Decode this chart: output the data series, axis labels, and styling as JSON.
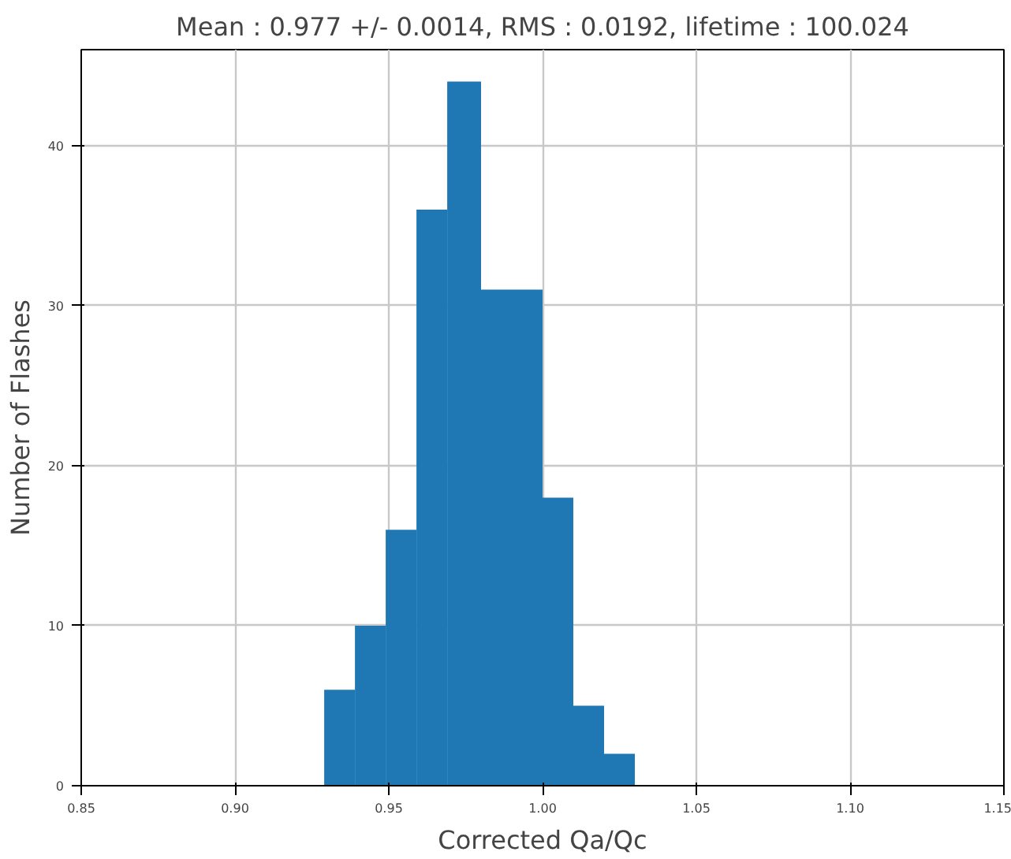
{
  "chart_data": {
    "type": "histogram",
    "title": "Mean : 0.977 +/- 0.0014, RMS : 0.0192, lifetime : 100.024",
    "xlabel": "Corrected Qa/Qc",
    "ylabel": "Number of Flashes",
    "bins": [
      0.929,
      0.939,
      0.949,
      0.959,
      0.969,
      0.98,
      0.99,
      1.0,
      1.01,
      1.02,
      1.03
    ],
    "values": [
      6,
      10,
      16,
      36,
      44,
      31,
      31,
      18,
      5,
      2
    ],
    "color": "#1f77b4",
    "xlim": [
      0.85,
      1.15
    ],
    "xticks": [
      {
        "value": 0.85,
        "label": "0.85"
      },
      {
        "value": 0.9,
        "label": "0.90"
      },
      {
        "value": 0.95,
        "label": "0.95"
      },
      {
        "value": 1.0,
        "label": "1.00"
      },
      {
        "value": 1.05,
        "label": "1.05"
      },
      {
        "value": 1.1,
        "label": "1.10"
      },
      {
        "value": 1.15,
        "label": "1.15"
      }
    ],
    "ylim": [
      0,
      46
    ],
    "yticks": [
      0,
      10,
      20,
      30,
      40
    ],
    "grid": true
  }
}
